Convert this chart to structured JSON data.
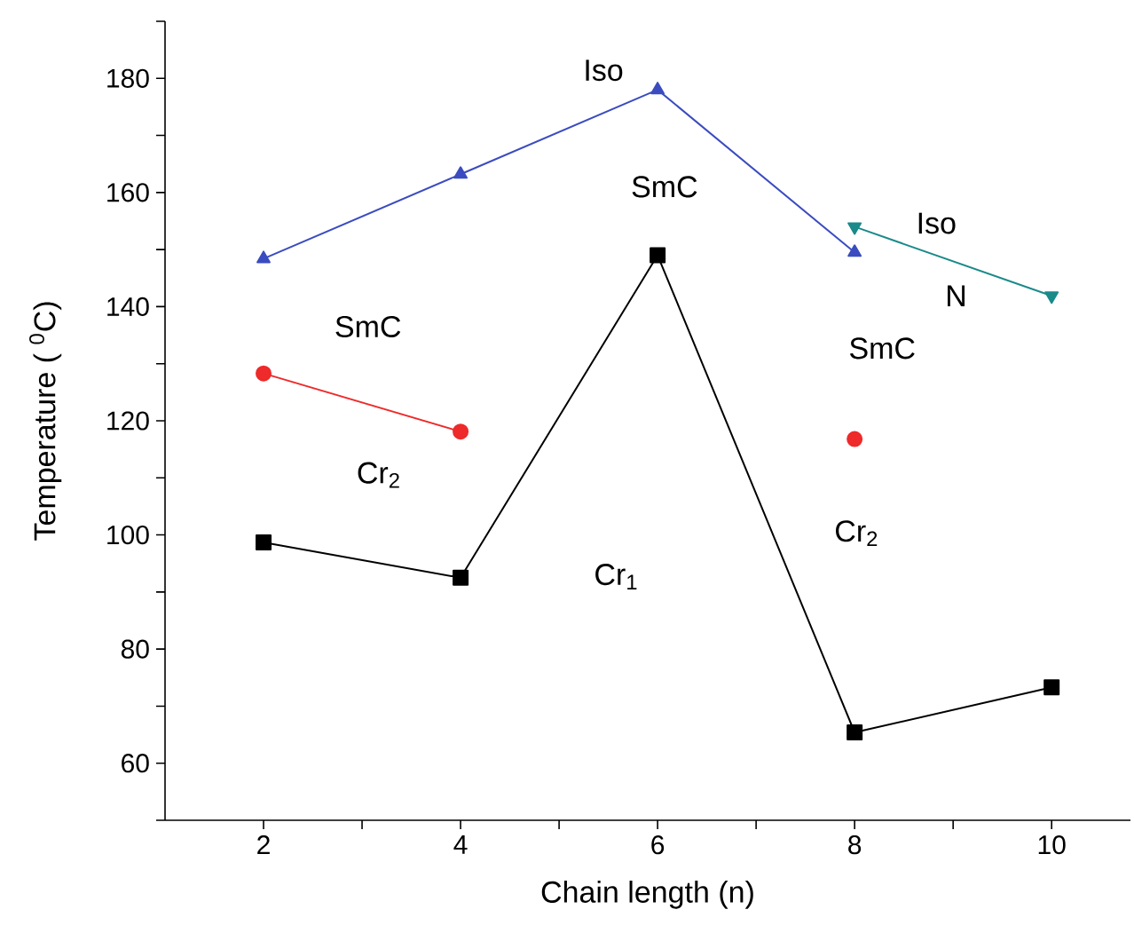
{
  "chart_data": {
    "type": "line",
    "xlabel": "Chain length (n)",
    "ylabel": "Temperature ( $^{0}$C)",
    "x": [
      2,
      4,
      6,
      8,
      10
    ],
    "series": [
      {
        "color": "#000000",
        "marker": "square",
        "values": [
          98.7,
          92.5,
          149,
          65.4,
          73.3
        ]
      },
      {
        "color": "#3b4cc0",
        "marker": "triangle",
        "values": [
          148.4,
          163.2,
          178,
          149.5,
          null
        ]
      },
      {
        "color": "#ee2a2a",
        "marker": "circle",
        "values": [
          128.3,
          118.1,
          null,
          116.8,
          null
        ]
      },
      {
        "color": "#1a8a8a",
        "marker": "triangle-down",
        "values": [
          null,
          null,
          null,
          154,
          141.9
        ]
      }
    ],
    "xlim": [
      1,
      10.8
    ],
    "ylim": [
      50,
      190
    ],
    "xticks": [
      2,
      {
        "value": 3,
        "label": null
      },
      4,
      {
        "value": 5,
        "label": null
      },
      6,
      {
        "value": 7,
        "label": null
      },
      8,
      {
        "value": 9,
        "label": null
      },
      10
    ],
    "yticks": [
      {
        "value": 50,
        "label": null
      },
      60,
      {
        "value": 70,
        "label": null
      },
      80,
      {
        "value": 90,
        "label": null
      },
      100,
      {
        "value": 110,
        "label": null
      },
      120,
      {
        "value": 130,
        "label": null
      },
      140,
      {
        "value": 150,
        "label": null
      },
      160,
      {
        "value": 170,
        "label": null
      },
      180,
      {
        "value": 190,
        "label": null
      }
    ],
    "annotations": [
      "Iso",
      "SmC",
      "SmC",
      "Cr$_{2}$",
      "Cr$_{1}$",
      "SmC",
      "Cr$_{2}$",
      "Iso",
      "N"
    ],
    "grid": false,
    "line_style": "solid"
  }
}
